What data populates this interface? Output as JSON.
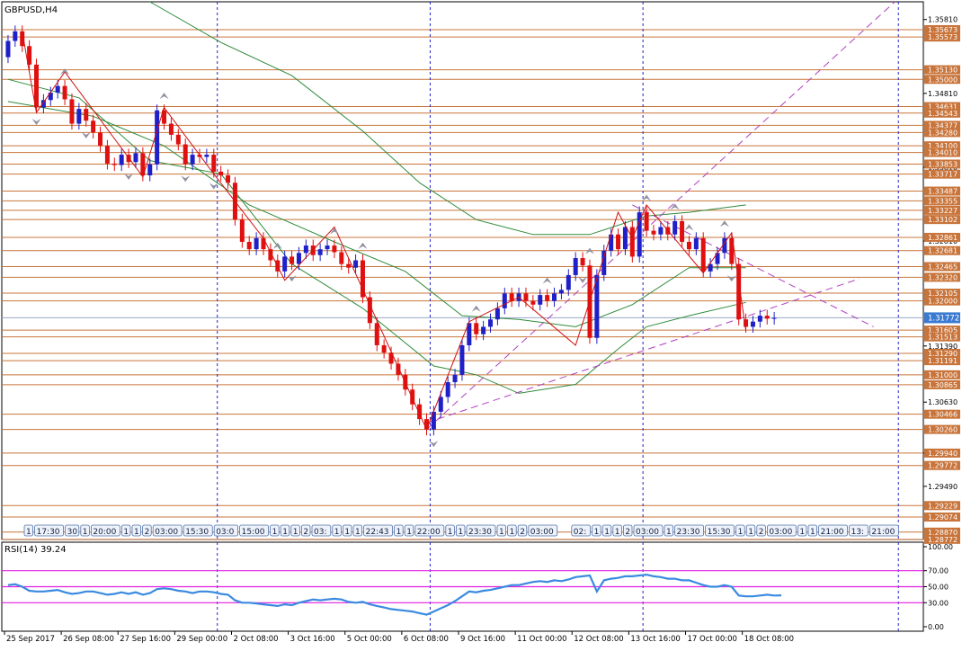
{
  "window": {
    "title": "GBPUSD,H4"
  },
  "colors": {
    "background": "#ffffff",
    "frame": "#000000",
    "bull_candle": "#2020c8",
    "bear_candle": "#e01010",
    "horizontal_level": "#c8743a",
    "price_label_bg": "#c8743a",
    "current_price_bg": "#3a7ad0",
    "period_separator": "#2020c8",
    "zigzag": "#d01010",
    "channel": "#b040c0",
    "moving_average": "#2e8b3a",
    "rsi_line": "#3a8ae0",
    "rsi_levels": "#e020e0",
    "fractal_marker": "#9090a0"
  },
  "toolbar_pills": [
    "1",
    "17:30",
    "30",
    "1",
    "20:00",
    "1",
    "1",
    "2",
    "03:00",
    "15:30",
    "03:0",
    "15:00",
    "1",
    "1",
    "1",
    "2",
    "03:",
    "1",
    "1",
    "1",
    "22:43",
    "1",
    "1",
    "22:00",
    "1",
    "1",
    "23:30",
    "1",
    "1",
    "2",
    "03:00",
    "02:",
    "1",
    "1",
    "1",
    "2",
    "03:00",
    "1",
    "23:30",
    "15:30",
    "1",
    "1",
    "2",
    "03:00",
    "1",
    "1",
    "21:00",
    "13:",
    "21:00",
    "1",
    "1",
    "21:00",
    "16:30",
    "1",
    "21:00"
  ],
  "chart_data": {
    "type": "candlestick",
    "symbol": "GBPUSD",
    "timeframe": "H4",
    "title": "GBPUSD,H4",
    "ylim": [
      1.2877,
      1.3605
    ],
    "current_price": "1.31772",
    "price_axis_ticks": [
      "1.35810",
      "1.34810",
      "1.33810",
      "1.32810",
      "1.31390",
      "1.30630",
      "1.29940",
      "1.29490"
    ],
    "price_axis_ticks_raw": [
      "1.35810",
      "1.35100",
      "1.34810",
      "1.34250",
      "1.33810",
      "1.32810",
      "1.32530",
      "1.31390",
      "1.30630",
      "1.29490"
    ],
    "level_labels": [
      "1.35673",
      "1.35573",
      "1.35130",
      "1.35000",
      "1.34631",
      "1.34543",
      "1.34377",
      "1.34280",
      "1.34100",
      "1.34010",
      "1.33853",
      "1.33717",
      "1.33487",
      "1.33355",
      "1.33227",
      "1.33102",
      "1.32861",
      "1.32681",
      "1.32465",
      "1.32320",
      "1.32105",
      "1.32000",
      "1.31605",
      "1.31513",
      "1.31290",
      "1.31191",
      "1.31000",
      "1.30865",
      "1.30466",
      "1.30260",
      "1.29940",
      "1.29772",
      "1.29229",
      "1.29074",
      "1.28870",
      "1.28772"
    ],
    "levels": [
      1.35673,
      1.35573,
      1.3513,
      1.35,
      1.34631,
      1.34543,
      1.34377,
      1.3428,
      1.341,
      1.3401,
      1.33853,
      1.33717,
      1.33487,
      1.33355,
      1.33227,
      1.33102,
      1.32861,
      1.32681,
      1.32465,
      1.3232,
      1.32105,
      1.32,
      1.31605,
      1.31513,
      1.3129,
      1.31191,
      1.31,
      1.30865,
      1.30466,
      1.3026,
      1.2994,
      1.29772,
      1.29229,
      1.29074,
      1.2887,
      1.28772
    ],
    "x_labels": [
      "25 Sep 2017",
      "26 Sep 08:00",
      "27 Sep 16:00",
      "29 Sep 00:00",
      "2 Oct 08:00",
      "3 Oct 16:00",
      "5 Oct 00:00",
      "6 Oct 08:00",
      "9 Oct 16:00",
      "11 Oct 00:00",
      "12 Oct 08:00",
      "13 Oct 16:00",
      "17 Oct 00:00",
      "18 Oct 08:00"
    ],
    "x_label_positions": [
      0,
      8,
      16,
      24,
      32,
      40,
      48,
      56,
      64,
      72,
      80,
      88,
      96,
      104
    ],
    "period_separators": [
      30,
      60,
      90,
      126
    ],
    "n_slots": 128,
    "candles": [
      {
        "o": 1.353,
        "c": 1.3552
      },
      {
        "o": 1.3552,
        "c": 1.3565
      },
      {
        "o": 1.3565,
        "c": 1.3545
      },
      {
        "o": 1.3545,
        "c": 1.352
      },
      {
        "o": 1.352,
        "c": 1.3462
      },
      {
        "o": 1.3462,
        "c": 1.3472
      },
      {
        "o": 1.3472,
        "c": 1.3482
      },
      {
        "o": 1.3482,
        "c": 1.3491
      },
      {
        "o": 1.3491,
        "c": 1.3473
      },
      {
        "o": 1.3473,
        "c": 1.344
      },
      {
        "o": 1.344,
        "c": 1.346
      },
      {
        "o": 1.346,
        "c": 1.3444
      },
      {
        "o": 1.3444,
        "c": 1.3428
      },
      {
        "o": 1.3428,
        "c": 1.341
      },
      {
        "o": 1.341,
        "c": 1.3386
      },
      {
        "o": 1.3386,
        "c": 1.3384
      },
      {
        "o": 1.3384,
        "c": 1.3398
      },
      {
        "o": 1.3398,
        "c": 1.3388
      },
      {
        "o": 1.3388,
        "c": 1.34
      },
      {
        "o": 1.34,
        "c": 1.337
      },
      {
        "o": 1.337,
        "c": 1.3385
      },
      {
        "o": 1.3385,
        "c": 1.3458
      },
      {
        "o": 1.3458,
        "c": 1.344
      },
      {
        "o": 1.344,
        "c": 1.3425
      },
      {
        "o": 1.3425,
        "c": 1.3412
      },
      {
        "o": 1.3412,
        "c": 1.3385
      },
      {
        "o": 1.3385,
        "c": 1.3398
      },
      {
        "o": 1.3398,
        "c": 1.3395
      },
      {
        "o": 1.3395,
        "c": 1.3398
      },
      {
        "o": 1.3398,
        "c": 1.3375
      },
      {
        "o": 1.3375,
        "c": 1.337
      },
      {
        "o": 1.337,
        "c": 1.336
      },
      {
        "o": 1.336,
        "c": 1.331
      },
      {
        "o": 1.331,
        "c": 1.328
      },
      {
        "o": 1.328,
        "c": 1.327
      },
      {
        "o": 1.327,
        "c": 1.3285
      },
      {
        "o": 1.3285,
        "c": 1.327
      },
      {
        "o": 1.327,
        "c": 1.3255
      },
      {
        "o": 1.3255,
        "c": 1.324
      },
      {
        "o": 1.324,
        "c": 1.326
      },
      {
        "o": 1.326,
        "c": 1.325
      },
      {
        "o": 1.325,
        "c": 1.3265
      },
      {
        "o": 1.3265,
        "c": 1.3275
      },
      {
        "o": 1.3275,
        "c": 1.3262
      },
      {
        "o": 1.3262,
        "c": 1.327
      },
      {
        "o": 1.327,
        "c": 1.3275
      },
      {
        "o": 1.3275,
        "c": 1.3266
      },
      {
        "o": 1.3266,
        "c": 1.325
      },
      {
        "o": 1.325,
        "c": 1.3245
      },
      {
        "o": 1.3245,
        "c": 1.3255
      },
      {
        "o": 1.3255,
        "c": 1.3205
      },
      {
        "o": 1.3205,
        "c": 1.317
      },
      {
        "o": 1.317,
        "c": 1.314
      },
      {
        "o": 1.314,
        "c": 1.313
      },
      {
        "o": 1.313,
        "c": 1.3115
      },
      {
        "o": 1.3115,
        "c": 1.31
      },
      {
        "o": 1.31,
        "c": 1.308
      },
      {
        "o": 1.308,
        "c": 1.306
      },
      {
        "o": 1.306,
        "c": 1.304
      },
      {
        "o": 1.304,
        "c": 1.3026
      },
      {
        "o": 1.3026,
        "c": 1.305
      },
      {
        "o": 1.305,
        "c": 1.307
      },
      {
        "o": 1.307,
        "c": 1.309
      },
      {
        "o": 1.309,
        "c": 1.31
      },
      {
        "o": 1.31,
        "c": 1.314
      },
      {
        "o": 1.314,
        "c": 1.317
      },
      {
        "o": 1.317,
        "c": 1.3155
      },
      {
        "o": 1.3155,
        "c": 1.3165
      },
      {
        "o": 1.3165,
        "c": 1.3175
      },
      {
        "o": 1.3175,
        "c": 1.319
      },
      {
        "o": 1.319,
        "c": 1.321
      },
      {
        "o": 1.321,
        "c": 1.32
      },
      {
        "o": 1.32,
        "c": 1.321
      },
      {
        "o": 1.321,
        "c": 1.32
      },
      {
        "o": 1.32,
        "c": 1.3195
      },
      {
        "o": 1.3195,
        "c": 1.3208
      },
      {
        "o": 1.3208,
        "c": 1.32
      },
      {
        "o": 1.32,
        "c": 1.321
      },
      {
        "o": 1.321,
        "c": 1.3215
      },
      {
        "o": 1.3215,
        "c": 1.3235
      },
      {
        "o": 1.3235,
        "c": 1.3258
      },
      {
        "o": 1.3258,
        "c": 1.3248
      },
      {
        "o": 1.3248,
        "c": 1.315
      },
      {
        "o": 1.315,
        "c": 1.3235
      },
      {
        "o": 1.3235,
        "c": 1.3268
      },
      {
        "o": 1.3268,
        "c": 1.329
      },
      {
        "o": 1.329,
        "c": 1.327
      },
      {
        "o": 1.327,
        "c": 1.33
      },
      {
        "o": 1.33,
        "c": 1.326
      },
      {
        "o": 1.326,
        "c": 1.332
      },
      {
        "o": 1.332,
        "c": 1.3295
      },
      {
        "o": 1.3295,
        "c": 1.329
      },
      {
        "o": 1.329,
        "c": 1.33
      },
      {
        "o": 1.33,
        "c": 1.329
      },
      {
        "o": 1.329,
        "c": 1.3308
      },
      {
        "o": 1.3308,
        "c": 1.328
      },
      {
        "o": 1.328,
        "c": 1.327
      },
      {
        "o": 1.327,
        "c": 1.3285
      },
      {
        "o": 1.3285,
        "c": 1.324
      },
      {
        "o": 1.324,
        "c": 1.325
      },
      {
        "o": 1.325,
        "c": 1.3265
      },
      {
        "o": 1.3265,
        "c": 1.3285
      },
      {
        "o": 1.3285,
        "c": 1.325
      },
      {
        "o": 1.325,
        "c": 1.3175
      },
      {
        "o": 1.3175,
        "c": 1.3165
      },
      {
        "o": 1.3165,
        "c": 1.3172
      },
      {
        "o": 1.3172,
        "c": 1.318
      },
      {
        "o": 1.318,
        "c": 1.3176
      },
      {
        "o": 1.3176,
        "c": 1.3177
      }
    ],
    "zigzag": [
      [
        2,
        1.3565
      ],
      [
        4,
        1.3455
      ],
      [
        8,
        1.351
      ],
      [
        19,
        1.3368
      ],
      [
        22,
        1.3462
      ],
      [
        29,
        1.3372
      ],
      [
        36,
        1.3285
      ],
      [
        39,
        1.3228
      ],
      [
        46,
        1.33
      ],
      [
        59,
        1.3026
      ],
      [
        65,
        1.3172
      ],
      [
        72,
        1.3205
      ],
      [
        80,
        1.314
      ],
      [
        86,
        1.332
      ],
      [
        88,
        1.3285
      ],
      [
        90,
        1.333
      ],
      [
        98,
        1.3238
      ],
      [
        102,
        1.3292
      ],
      [
        104,
        1.316
      ]
    ],
    "moving_average_fast": [
      [
        0,
        1.35
      ],
      [
        10,
        1.3475
      ],
      [
        20,
        1.339
      ],
      [
        30,
        1.3372
      ],
      [
        40,
        1.325
      ],
      [
        50,
        1.319
      ],
      [
        60,
        1.3112
      ],
      [
        66,
        1.31
      ],
      [
        72,
        1.3075
      ],
      [
        80,
        1.3087
      ],
      [
        86,
        1.3135
      ],
      [
        90,
        1.3165
      ],
      [
        96,
        1.318
      ],
      [
        104,
        1.3198
      ]
    ],
    "moving_average_mid": [
      [
        0,
        1.347
      ],
      [
        12,
        1.345
      ],
      [
        22,
        1.341
      ],
      [
        34,
        1.333
      ],
      [
        46,
        1.328
      ],
      [
        56,
        1.324
      ],
      [
        64,
        1.318
      ],
      [
        72,
        1.3175
      ],
      [
        80,
        1.3165
      ],
      [
        88,
        1.3195
      ],
      [
        96,
        1.3245
      ],
      [
        104,
        1.3245
      ]
    ],
    "moving_average_slow": [
      [
        20,
        1.3605
      ],
      [
        30,
        1.355
      ],
      [
        40,
        1.3505
      ],
      [
        50,
        1.343
      ],
      [
        58,
        1.336
      ],
      [
        66,
        1.331
      ],
      [
        74,
        1.329
      ],
      [
        82,
        1.329
      ],
      [
        90,
        1.3315
      ],
      [
        96,
        1.332
      ],
      [
        104,
        1.333
      ]
    ],
    "channel_lines": [
      {
        "from": [
          59,
          1.3026
        ],
        "to": [
          125,
          1.3605
        ]
      },
      {
        "from": [
          59,
          1.3035
        ],
        "to": [
          120,
          1.323
        ]
      },
      {
        "from": [
          88,
          1.333
        ],
        "to": [
          122,
          1.3165
        ]
      }
    ],
    "fractals_up": [
      8,
      22,
      38,
      46,
      50,
      66,
      76,
      82,
      90,
      94,
      96,
      101
    ],
    "fractals_down": [
      4,
      11,
      17,
      25,
      29,
      40,
      60,
      81,
      102
    ],
    "rsi": {
      "label": "RSI(14) 39.24",
      "period": 14,
      "value": 39.24,
      "ylim": [
        0,
        100
      ],
      "ticks": [
        "100.00",
        "70.00",
        "50.00",
        "30.00",
        "0.00"
      ],
      "levels": [
        70,
        50,
        30
      ],
      "values": [
        52,
        53,
        50,
        45,
        44,
        44,
        45,
        46,
        43,
        41,
        42,
        44,
        44,
        42,
        40,
        41,
        43,
        41,
        43,
        40,
        42,
        47,
        48,
        47,
        45,
        44,
        42,
        44,
        44,
        43,
        41,
        40,
        33,
        30,
        30,
        29,
        28,
        27,
        26,
        28,
        27,
        30,
        32,
        34,
        33,
        34,
        35,
        34,
        31,
        30,
        31,
        28,
        26,
        24,
        22,
        21,
        20,
        19,
        17,
        15,
        19,
        23,
        27,
        32,
        38,
        44,
        43,
        45,
        46,
        48,
        50,
        52,
        52,
        54,
        56,
        57,
        56,
        58,
        57,
        59,
        62,
        63,
        64,
        44,
        58,
        60,
        61,
        63,
        63,
        64,
        65,
        63,
        62,
        60,
        60,
        58,
        58,
        55,
        52,
        50,
        50,
        52,
        50,
        39,
        38,
        38,
        39,
        40,
        39,
        39.24
      ]
    }
  }
}
